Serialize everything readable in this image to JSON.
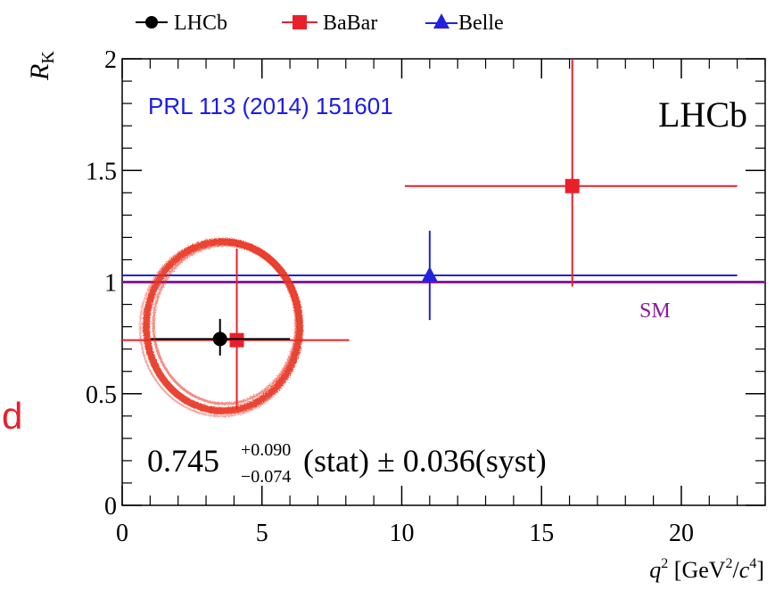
{
  "chart_data": {
    "type": "scatter",
    "title": "",
    "xlabel_main": "q",
    "xlabel_sup": "2",
    "xlabel_unit_open": " [GeV",
    "xlabel_unit_sup": "2",
    "xlabel_unit_mid": "/",
    "xlabel_unit_c": "c",
    "xlabel_unit_sup2": "4",
    "xlabel_unit_close": "]",
    "ylabel_main": "R",
    "ylabel_sub": "K",
    "xlim": [
      0,
      23
    ],
    "ylim": [
      0,
      2
    ],
    "xticks": [
      0,
      5,
      10,
      15,
      20
    ],
    "yticks": [
      0,
      0.5,
      1,
      1.5,
      2
    ],
    "xtick_labels": [
      "0",
      "5",
      "10",
      "15",
      "20"
    ],
    "ytick_labels": [
      "0",
      "0.5",
      "1",
      "1.5",
      "2"
    ],
    "legend_position": "top, outside plot",
    "legend": [
      {
        "name": "LHCb",
        "marker": "circle",
        "color": "#000000"
      },
      {
        "name": "BaBar",
        "marker": "square",
        "color": "#e8202a"
      },
      {
        "name": "Belle",
        "marker": "triangle",
        "color": "#2222dd"
      }
    ],
    "series": [
      {
        "name": "LHCb",
        "color": "#000000",
        "marker": "circle",
        "points": [
          {
            "x": 3.5,
            "xlo": 1.0,
            "xhi": 6.0,
            "y": 0.745,
            "ylo": 0.671,
            "yhi": 0.835
          }
        ]
      },
      {
        "name": "BaBar",
        "color": "#e8202a",
        "marker": "square",
        "points": [
          {
            "x": 4.1,
            "xlo": 0.0,
            "xhi": 8.12,
            "y": 0.74,
            "ylo": 0.43,
            "yhi": 1.15
          },
          {
            "x": 16.1,
            "xlo": 10.11,
            "xhi": 22.0,
            "y": 1.43,
            "ylo": 0.98,
            "yhi": 2.0
          }
        ]
      },
      {
        "name": "Belle",
        "color": "#2222dd",
        "marker": "triangle",
        "points": [
          {
            "x": 11.0,
            "xlo": 0.0,
            "xhi": 22.0,
            "y": 1.03,
            "ylo": 0.83,
            "yhi": 1.23
          }
        ]
      }
    ],
    "reference_line": {
      "label": "SM",
      "y": 1.0,
      "color": "#8a1a9c"
    },
    "annotations": {
      "experiment_label": "LHCb",
      "reference": "PRL 113 (2014) 151601",
      "result_value": "0.745",
      "result_sup": "+0.090",
      "result_sub": "−0.074",
      "result_stat": "(stat) ± 0.036(syst)",
      "side_letter": "d"
    },
    "colors": {
      "highlight_circle": "#e8321e",
      "reference_text": "#1a1aee",
      "side_letter": "#e8202a"
    }
  }
}
